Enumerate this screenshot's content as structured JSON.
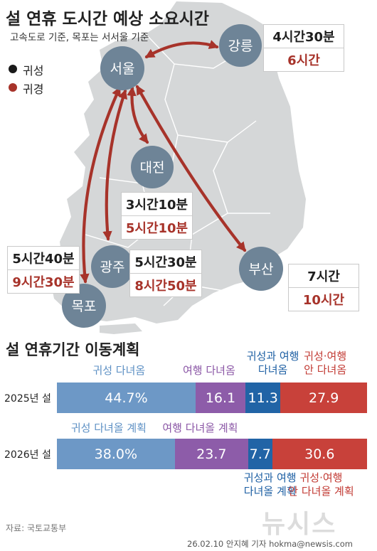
{
  "header": {
    "title": "설 연휴 도시간 예상 소요시간",
    "subtitle": "고속도로 기준, 목포는 서서울 기준"
  },
  "legend": [
    {
      "label": "귀성",
      "color": "#1a1a1a"
    },
    {
      "label": "귀경",
      "color": "#a7332a"
    }
  ],
  "cities": {
    "seoul": "서울",
    "gangneung": "강릉",
    "daejeon": "대전",
    "gwangju": "광주",
    "mokpo": "목포",
    "busan": "부산"
  },
  "times": {
    "gangneung": {
      "go": "4시간30분",
      "back": "6시간"
    },
    "daejeon": {
      "go": "3시간10분",
      "back": "5시간10분"
    },
    "gwangju": {
      "go": "5시간30분",
      "back": "8시간50분"
    },
    "mokpo": {
      "go": "5시간40분",
      "back": "9시간30분"
    },
    "busan": {
      "go": "7시간",
      "back": "10시간"
    }
  },
  "chart_data": {
    "type": "bar",
    "stacked": true,
    "orientation": "horizontal",
    "percent": true,
    "title": "설 연휴기간 이동계획",
    "categories": [
      "2025년 설",
      "2026년 설"
    ],
    "series": [
      {
        "name": "귀성 다녀옴 / 귀성 다녀올 계획",
        "values": [
          44.7,
          38.0
        ],
        "labels": [
          "44.7%",
          "38.0%"
        ],
        "color": "#6d98c6"
      },
      {
        "name": "여행 다녀옴 / 여행 다녀올 계획",
        "values": [
          16.1,
          23.7
        ],
        "labels": [
          "16.1",
          "23.7"
        ],
        "color": "#8d5ca9"
      },
      {
        "name": "귀성과 여행 다녀옴 / 귀성과 여행 다녀올 계획",
        "values": [
          11.3,
          7.7
        ],
        "labels": [
          "11.3",
          "7.7"
        ],
        "color": "#2164a6"
      },
      {
        "name": "귀성·여행 안 다녀옴 / 귀성·여행 안 다녀올 계획",
        "values": [
          27.9,
          30.6
        ],
        "labels": [
          "27.9",
          "30.6"
        ],
        "color": "#c8413a"
      }
    ],
    "annotations_2025": [
      {
        "text": "귀성 다녀옴",
        "color": "#5d90c4"
      },
      {
        "text": "여행 다녀옴",
        "color": "#8b57a6"
      },
      {
        "text": "귀성과 여행\n다녀옴",
        "color": "#1d5fa3"
      },
      {
        "text": "귀성·여행\n안 다녀옴",
        "color": "#c23a33"
      }
    ],
    "annotations_2026": [
      {
        "text": "귀성 다녀올 계획",
        "color": "#5d90c4"
      },
      {
        "text": "여행 다녀올 계획",
        "color": "#8b57a6"
      },
      {
        "text": "귀성과 여행\n다녀올 계획",
        "color": "#1d5fa3"
      },
      {
        "text": "귀성·여행\n안 다녀올 계획",
        "color": "#c23a33"
      }
    ]
  },
  "footer": {
    "source": "자료: 국토교통부",
    "credit": "26.02.10 안지혜 기자 hokma@newsis.com",
    "logo": "뉴시스"
  }
}
